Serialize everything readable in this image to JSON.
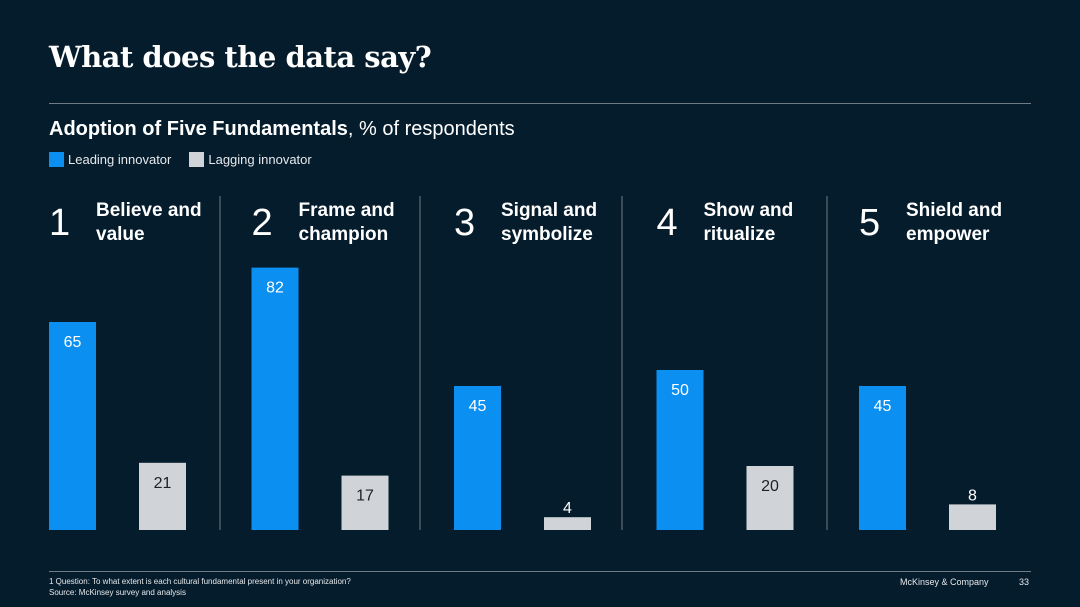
{
  "title": "What does the data say?",
  "subtitle": {
    "bold": "Adoption of Five Fundamentals",
    "rest": ", % of respondents"
  },
  "colors": {
    "background": "#051c2c",
    "leading": "#0b8ff1",
    "lagging": "#d0d4d9"
  },
  "chart_data": {
    "type": "bar",
    "title": "Adoption of Five Fundamentals, % of respondents",
    "unit": "% of respondents",
    "legend_position": "top-left",
    "grid": false,
    "ylim": [
      0,
      100
    ],
    "categories": [
      {
        "number": "1",
        "label": [
          "Believe and",
          "value"
        ]
      },
      {
        "number": "2",
        "label": [
          "Frame and",
          "champion"
        ]
      },
      {
        "number": "3",
        "label": [
          "Signal and",
          "symbolize"
        ]
      },
      {
        "number": "4",
        "label": [
          "Show and",
          "ritualize"
        ]
      },
      {
        "number": "5",
        "label": [
          "Shield and",
          "empower"
        ]
      }
    ],
    "series": [
      {
        "name": "Leading innovator",
        "color": "#0b8ff1",
        "values": [
          65,
          82,
          45,
          50,
          45
        ]
      },
      {
        "name": "Lagging innovator",
        "color": "#d0d4d9",
        "values": [
          21,
          17,
          4,
          20,
          8
        ]
      }
    ]
  },
  "footer": {
    "note1": "1 Question: To what extent is each cultural fundamental present in your organization?",
    "note2": "Source: McKinsey survey and analysis",
    "brand": "McKinsey & Company",
    "page": "33"
  }
}
